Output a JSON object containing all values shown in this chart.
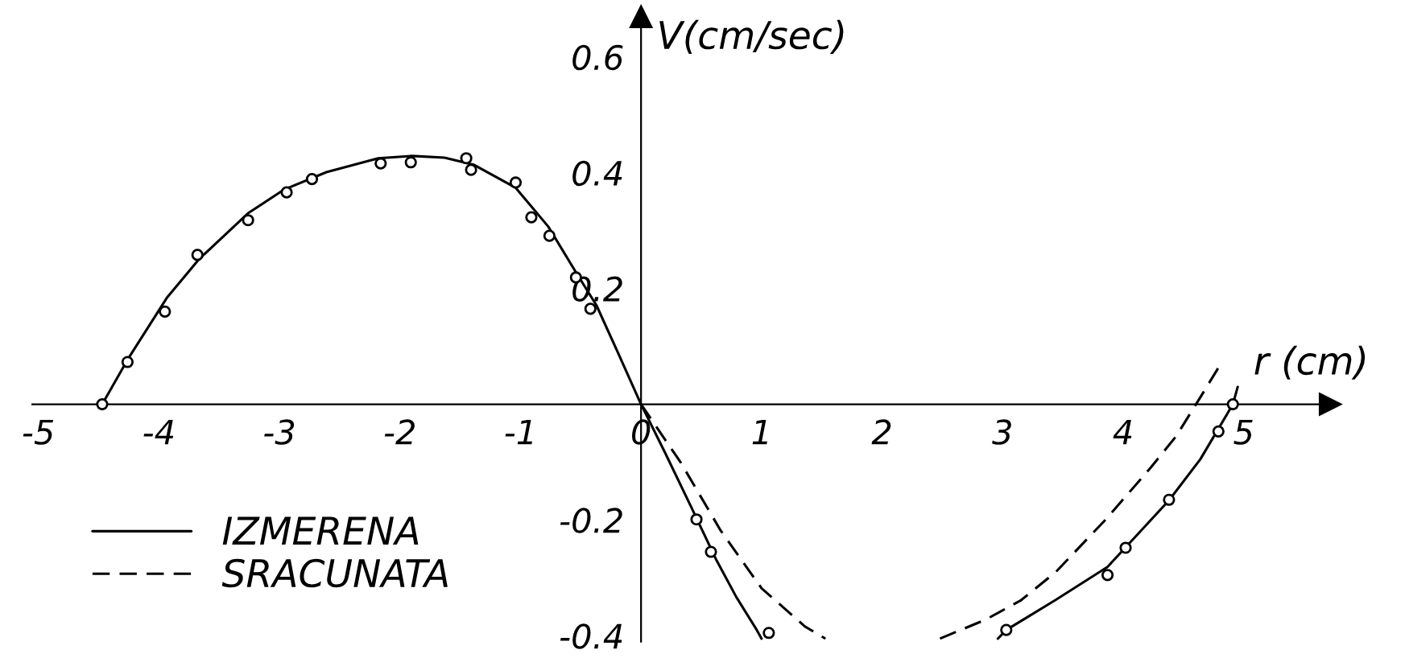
{
  "chart_data": {
    "type": "line",
    "xlabel": "r (cm)",
    "ylabel": "V(cm/sec)",
    "xlim": [
      -5.05,
      5.72
    ],
    "ylim": [
      -0.41,
      0.67
    ],
    "xticks": [
      -5,
      -4,
      -3,
      -2,
      -1,
      0,
      1,
      2,
      3,
      4,
      5
    ],
    "yticks": [
      -0.4,
      -0.2,
      0.2,
      0.4,
      0.6
    ],
    "legend": "bottom left",
    "series": [
      {
        "name": "IZMERENA",
        "line_style": "solid",
        "color": "#000000",
        "x": [
          -4.47,
          -4.26,
          -3.93,
          -3.67,
          -3.26,
          -2.96,
          -2.61,
          -2.18,
          -1.9,
          -1.63,
          -1.39,
          -1.04,
          -0.77,
          -0.54,
          -0.37,
          -0.2,
          0,
          0.2,
          0.41,
          0.62,
          0.79,
          0.96,
          1.0,
          2.0,
          2.96,
          3.03,
          3.44,
          3.87,
          4.38,
          4.64,
          4.91,
          4.95
        ],
        "values": [
          0.0,
          0.077,
          0.185,
          0.25,
          0.33,
          0.371,
          0.401,
          0.425,
          0.429,
          0.426,
          0.414,
          0.374,
          0.307,
          0.228,
          0.171,
          0.093,
          0.0,
          -0.084,
          -0.175,
          -0.267,
          -0.333,
          -0.39,
          -0.405,
          null,
          -0.405,
          -0.39,
          -0.338,
          -0.281,
          -0.166,
          -0.095,
          0.0,
          0.03
        ]
      },
      {
        "name": "SRACUNATA",
        "line_style": "dashed",
        "color": "#000000",
        "x": [
          0,
          0.33,
          0.66,
          1.0,
          1.36,
          1.53,
          2.0,
          2.48,
          2.86,
          3.15,
          3.44,
          3.86,
          4.23,
          4.44,
          4.64,
          4.81
        ],
        "values": [
          0.0,
          -0.101,
          -0.218,
          -0.318,
          -0.384,
          -0.405,
          null,
          -0.405,
          -0.372,
          -0.339,
          -0.29,
          -0.198,
          -0.109,
          -0.055,
          0.012,
          0.07
        ]
      },
      {
        "type": "scatter",
        "marker": "circle",
        "color": "#000000",
        "x": [
          -4.47,
          -4.26,
          -3.95,
          -3.68,
          -3.26,
          -2.94,
          -2.73,
          -2.16,
          -1.91,
          -1.45,
          -1.41,
          -1.04,
          -0.91,
          -0.76,
          -0.54,
          -0.42,
          0.46,
          0.58,
          1.06,
          3.03,
          3.87,
          4.02,
          4.38,
          4.79,
          4.91
        ],
        "values": [
          0.0,
          0.073,
          0.16,
          0.258,
          0.318,
          0.366,
          0.389,
          0.416,
          0.418,
          0.425,
          0.405,
          0.383,
          0.323,
          0.291,
          0.219,
          0.165,
          -0.199,
          -0.255,
          -0.395,
          -0.39,
          -0.295,
          -0.248,
          -0.165,
          -0.047,
          0.0
        ]
      }
    ]
  }
}
